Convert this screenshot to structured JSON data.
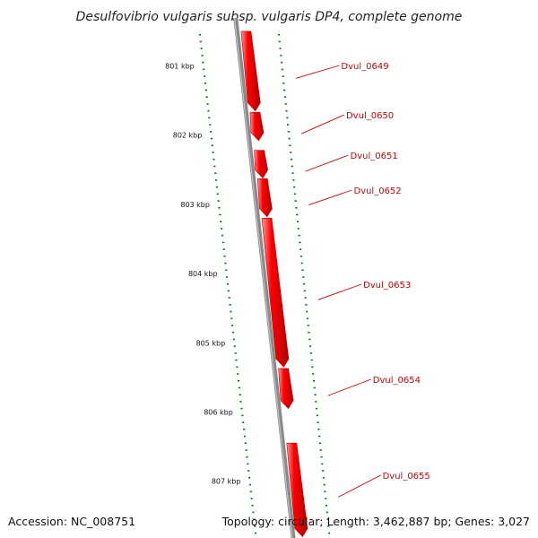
{
  "title": "Desulfovibrio vulgaris subsp. vulgaris DP4, complete genome",
  "footer": {
    "accession": "Accession: NC_008751",
    "summary": "Topology: circular; Length: 3,462,887 bp; Genes: 3,027"
  },
  "colors": {
    "gene_fill": "#ff0000",
    "gene_highlight": "#ff9a9a",
    "gene_shadow": "#b30000",
    "backbone": "#8a8a8a",
    "tick": "#117711",
    "label": "#cc0000"
  },
  "scale_ticks": [
    {
      "kbp": 801,
      "label": "801 kbp"
    },
    {
      "kbp": 802,
      "label": "802 kbp"
    },
    {
      "kbp": 803,
      "label": "803 kbp"
    },
    {
      "kbp": 804,
      "label": "804 kbp"
    },
    {
      "kbp": 805,
      "label": "805 kbp"
    },
    {
      "kbp": 806,
      "label": "806 kbp"
    },
    {
      "kbp": 807,
      "label": "807 kbp"
    }
  ],
  "genes": [
    {
      "name": "Dvul_0649",
      "start_kbp": 800.5,
      "end_kbp": 801.65
    },
    {
      "name": "Dvul_0650",
      "start_kbp": 801.67,
      "end_kbp": 802.08
    },
    {
      "name": "Dvul_0651",
      "start_kbp": 802.22,
      "end_kbp": 802.62
    },
    {
      "name": "Dvul_0652",
      "start_kbp": 802.63,
      "end_kbp": 803.18
    },
    {
      "name": "Dvul_0653",
      "start_kbp": 803.2,
      "end_kbp": 805.35
    },
    {
      "name": "Dvul_0654",
      "start_kbp": 805.37,
      "end_kbp": 805.95
    },
    {
      "name": "Dvul_0655",
      "start_kbp": 806.45,
      "end_kbp": 807.8
    }
  ]
}
